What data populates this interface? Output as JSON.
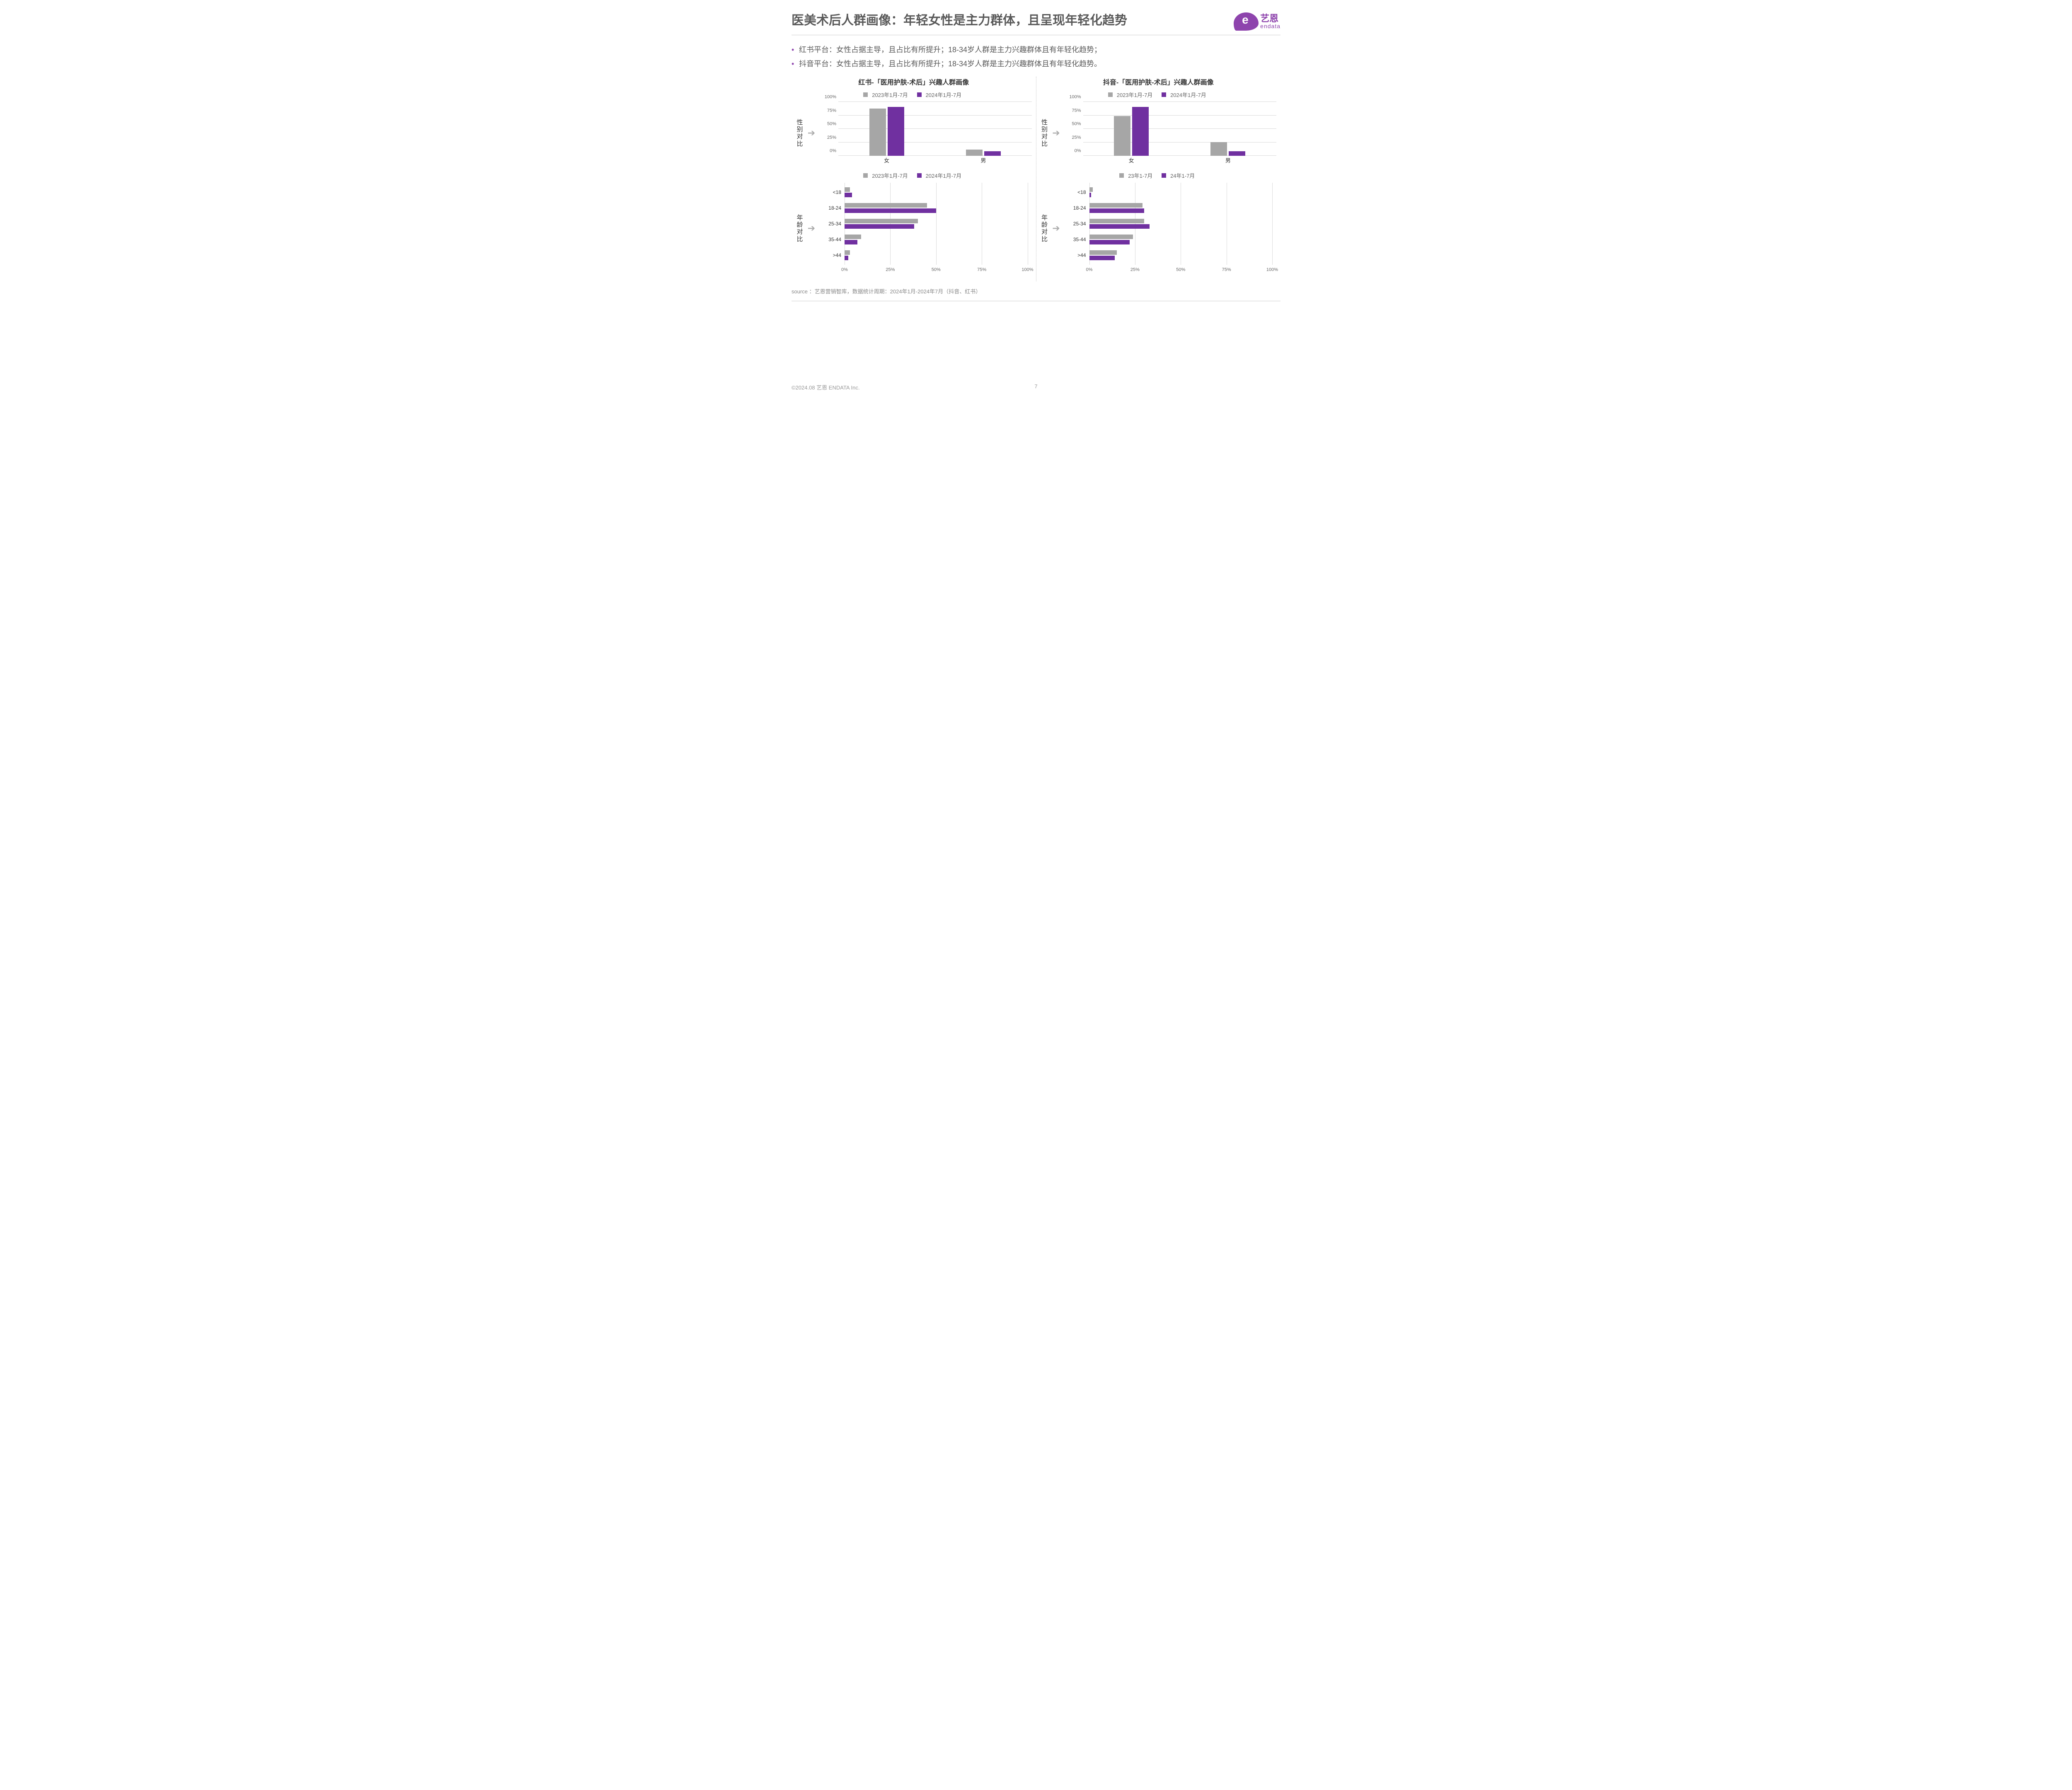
{
  "title": "医美术后人群画像：年轻女性是主力群体，且呈现年轻化趋势",
  "logo": {
    "cn": "艺恩",
    "en": "endata"
  },
  "bullets": [
    "红书平台：女性占据主导，且占比有所提升；18-34岁人群是主力兴趣群体且有年轻化趋势；",
    "抖音平台：女性占据主导，且占比有所提升；18-34岁人群是主力兴趣群体且有年轻化趋势。"
  ],
  "colors": {
    "series2023": "#a6a6a6",
    "series2024": "#7030a0",
    "grid": "#d9d9d9",
    "text": "#595959"
  },
  "rowlabels": {
    "gender": "性别对比",
    "age": "年龄对比"
  },
  "left": {
    "title": "红书-「医用护肤-术后」兴趣人群画像",
    "gender": {
      "legend": [
        "2023年1月-7月",
        "2024年1月-7月"
      ],
      "ylabels": [
        "0%",
        "25%",
        "50%",
        "75%",
        "100%"
      ],
      "ymax": 100,
      "categories": [
        "女",
        "男"
      ],
      "series2023": [
        88,
        12
      ],
      "series2024": [
        91,
        9
      ]
    },
    "age": {
      "legend": [
        "2023年1月-7月",
        "2024年1月-7月"
      ],
      "xlabels": [
        "0%",
        "25%",
        "50%",
        "75%",
        "100%"
      ],
      "xmax": 100,
      "categories": [
        "<18",
        "18-24",
        "25-34",
        "35-44",
        ">44"
      ],
      "series2023": [
        3,
        45,
        40,
        9,
        3
      ],
      "series2024": [
        4,
        50,
        38,
        7,
        2
      ]
    }
  },
  "right": {
    "title": "抖音-「医用护肤-术后」兴趣人群画像",
    "gender": {
      "legend": [
        "2023年1月-7月",
        "2024年1月-7月"
      ],
      "ylabels": [
        "0%",
        "25%",
        "50%",
        "75%",
        "100%"
      ],
      "ymax": 100,
      "categories": [
        "女",
        "男"
      ],
      "series2023": [
        74,
        26
      ],
      "series2024": [
        91,
        9
      ]
    },
    "age": {
      "legend": [
        "23年1-7月",
        "24年1-7月"
      ],
      "xlabels": [
        "0%",
        "25%",
        "50%",
        "75%",
        "100%"
      ],
      "xmax": 100,
      "categories": [
        "<18",
        "18-24",
        "25-34",
        "35-44",
        ">44"
      ],
      "series2023": [
        2,
        29,
        30,
        24,
        15
      ],
      "series2024": [
        1,
        30,
        33,
        22,
        14
      ]
    }
  },
  "source": "source ：艺恩营销智库，数据统计周期：2024年1月-2024年7月（抖音、红书）",
  "footer": "©2024.08  艺恩 ENDATA Inc.",
  "page": "7"
}
